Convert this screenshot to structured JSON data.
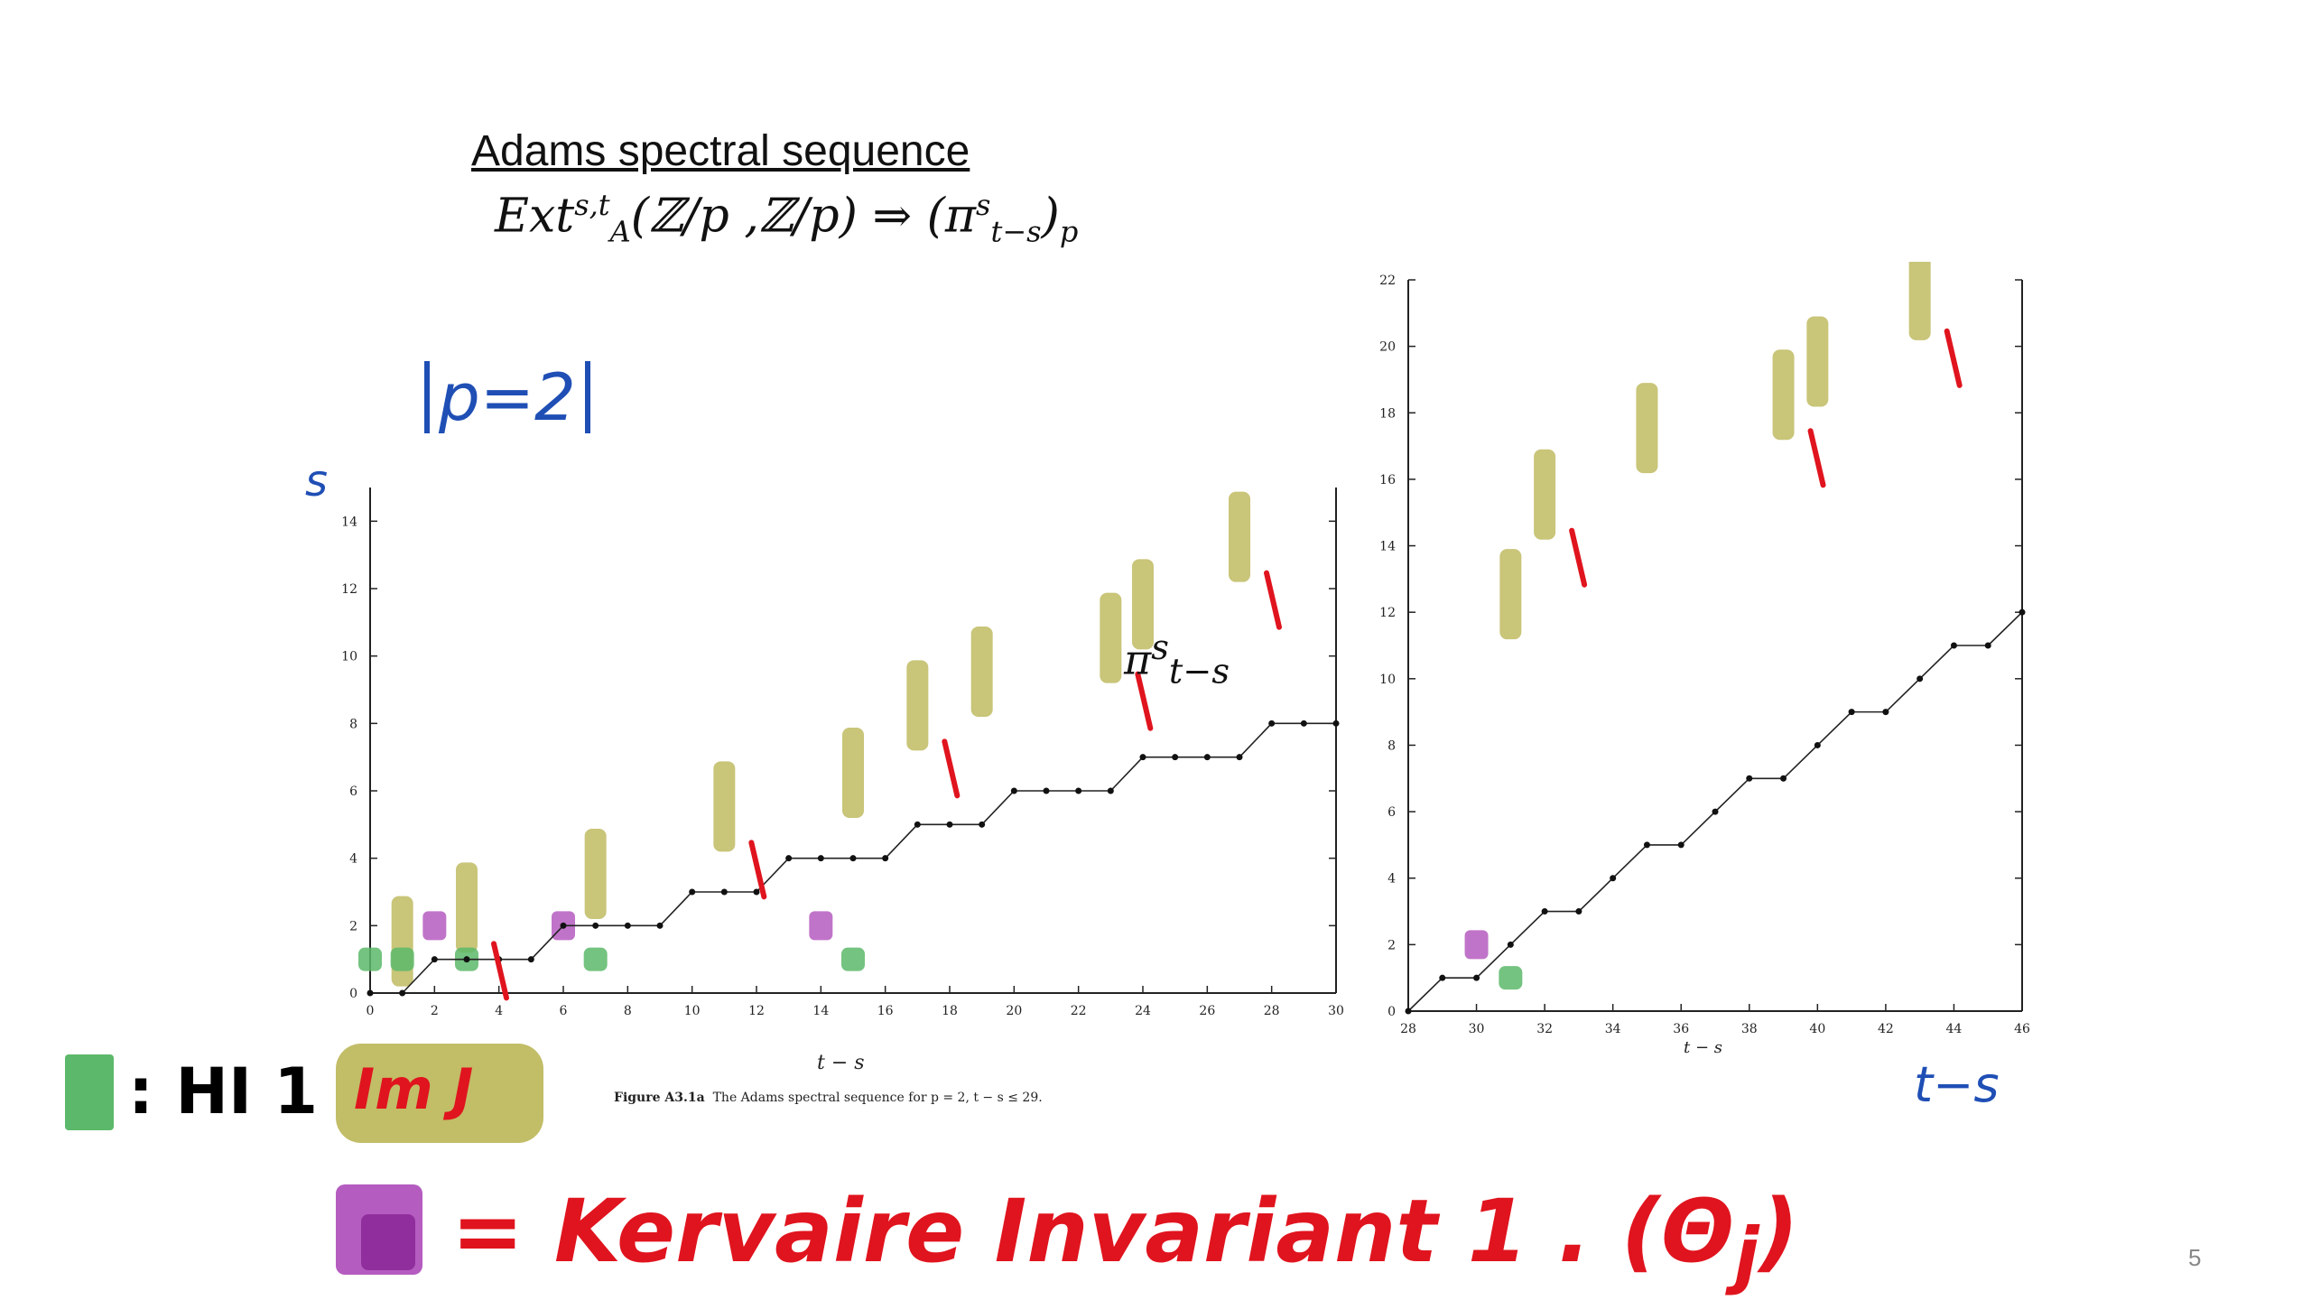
{
  "slide": {
    "title": "Adams spectral sequence",
    "formula": {
      "lhs": "Ext",
      "sup": "s,t",
      "sub": "A",
      "args": "(ℤ/p ,ℤ/p)",
      "arrow": "⇒",
      "rhs": "(π",
      "rhs_sup": "s",
      "rhs_sub": "t−s",
      "rhs_close": ")",
      "rhs_sub2": "p"
    },
    "page_number": "5"
  },
  "annotations": {
    "prime_box": "p=2",
    "s_axis": "s",
    "ts_axis": "t−s",
    "pi_label": "π",
    "pi_sup": "s",
    "pi_sub": "t−s"
  },
  "figure": {
    "caption_label": "Figure A3.1a",
    "caption_text": "The Adams spectral sequence for p = 2, t − s ≤ 29.",
    "xlabel": "t − s",
    "xlabel_right": "t − s"
  },
  "legend": {
    "green_text": ": HI 1",
    "imj_text": "Im J",
    "purple_text": "= Kervaire Invariant 1 . (Θ",
    "purple_sub": "j",
    "purple_close": ")"
  },
  "colors": {
    "hopf_invariant_one": "#5cb86a",
    "image_of_j": "#b7b24c",
    "kervaire": "#b55cc0",
    "red_ink": "#e0141e",
    "blue_ink": "#1f4fb5"
  },
  "chart_data": [
    {
      "type": "scatter",
      "title": "",
      "xlabel": "t − s",
      "ylabel": "s",
      "xlim": [
        0,
        30
      ],
      "ylim": [
        0,
        15
      ],
      "x_ticks": [
        "0",
        "2",
        "4",
        "6",
        "8",
        "10",
        "12",
        "14",
        "16",
        "18",
        "20",
        "22",
        "24",
        "26",
        "28",
        "30"
      ],
      "y_ticks": [
        "0",
        "2",
        "4",
        "6",
        "8",
        "10",
        "12",
        "14"
      ],
      "highlights": {
        "hopf_invariant_one": [
          [
            0,
            1
          ],
          [
            1,
            1
          ],
          [
            3,
            1
          ],
          [
            7,
            1
          ],
          [
            15,
            1
          ]
        ],
        "kervaire": [
          [
            2,
            2
          ],
          [
            6,
            2
          ],
          [
            14,
            2
          ]
        ],
        "image_of_j": [
          [
            1,
            1
          ],
          [
            3,
            2
          ],
          [
            7,
            3
          ],
          [
            11,
            5
          ],
          [
            15,
            6
          ],
          [
            17,
            8
          ],
          [
            19,
            9
          ],
          [
            23,
            10
          ],
          [
            24,
            11
          ],
          [
            27,
            13
          ]
        ]
      }
    },
    {
      "type": "scatter",
      "title": "",
      "xlabel": "t − s",
      "ylabel": "s",
      "xlim": [
        28,
        46
      ],
      "ylim": [
        0,
        22
      ],
      "x_ticks": [
        "28",
        "30",
        "32",
        "34",
        "36",
        "38",
        "40",
        "42",
        "44",
        "46"
      ],
      "y_ticks": [
        "0",
        "2",
        "4",
        "6",
        "8",
        "10",
        "12",
        "14",
        "16",
        "18",
        "20",
        "22"
      ],
      "highlights": {
        "hopf_invariant_one": [
          [
            31,
            1
          ]
        ],
        "kervaire": [
          [
            30,
            2
          ]
        ],
        "image_of_j": [
          [
            31,
            12
          ],
          [
            32,
            15
          ],
          [
            35,
            17
          ],
          [
            39,
            18
          ],
          [
            40,
            19
          ],
          [
            43,
            21
          ]
        ]
      }
    }
  ]
}
